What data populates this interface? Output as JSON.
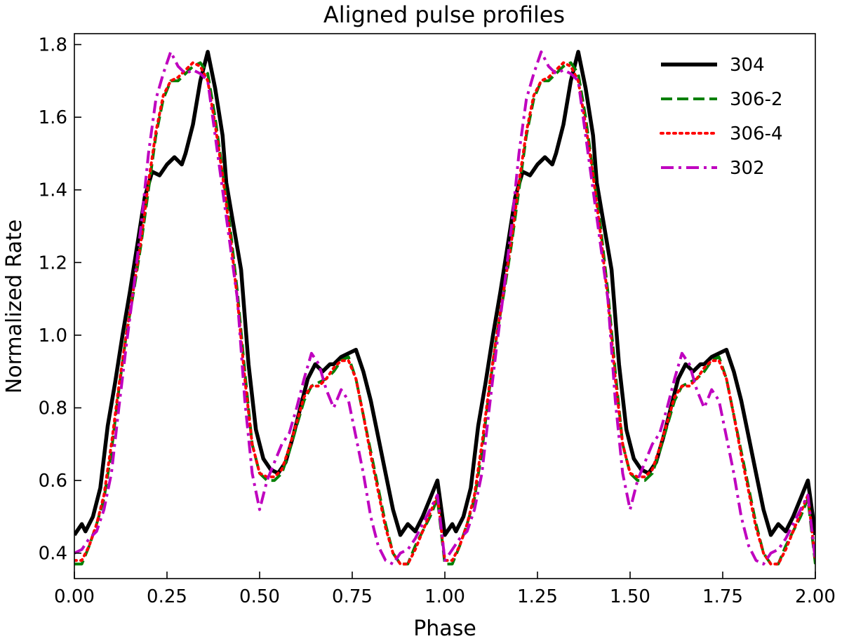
{
  "chart_data": {
    "type": "line",
    "title": "Aligned pulse profiles",
    "xlabel": "Phase",
    "ylabel": "Normalized Rate",
    "xlim": [
      0.0,
      2.0
    ],
    "ylim": [
      0.33,
      1.83
    ],
    "xticks": [
      0.0,
      0.25,
      0.5,
      0.75,
      1.0,
      1.25,
      1.5,
      1.75,
      2.0
    ],
    "xtick_labels": [
      "0.00",
      "0.25",
      "0.50",
      "0.75",
      "1.00",
      "1.25",
      "1.50",
      "1.75",
      "2.00"
    ],
    "yticks": [
      0.4,
      0.6,
      0.8,
      1.0,
      1.2,
      1.4,
      1.6,
      1.8
    ],
    "ytick_labels": [
      "0.4",
      "0.6",
      "0.8",
      "1.0",
      "1.2",
      "1.4",
      "1.6",
      "1.8"
    ],
    "grid": false,
    "legend_position": "top-right",
    "series": [
      {
        "name": "304",
        "color": "#000000",
        "style": "solid",
        "x": [
          0.0,
          0.02,
          0.03,
          0.05,
          0.07,
          0.09,
          0.11,
          0.13,
          0.15,
          0.17,
          0.19,
          0.21,
          0.23,
          0.25,
          0.27,
          0.29,
          0.3,
          0.32,
          0.34,
          0.36,
          0.38,
          0.4,
          0.41,
          0.43,
          0.45,
          0.47,
          0.49,
          0.51,
          0.53,
          0.55,
          0.57,
          0.59,
          0.61,
          0.63,
          0.65,
          0.67,
          0.69,
          0.7,
          0.72,
          0.74,
          0.76,
          0.78,
          0.8,
          0.82,
          0.84,
          0.86,
          0.88,
          0.9,
          0.92,
          0.94,
          0.96,
          0.98,
          1.0
        ],
        "y": [
          0.45,
          0.48,
          0.46,
          0.5,
          0.58,
          0.75,
          0.87,
          1.0,
          1.12,
          1.25,
          1.38,
          1.45,
          1.44,
          1.47,
          1.49,
          1.47,
          1.5,
          1.58,
          1.7,
          1.78,
          1.68,
          1.55,
          1.42,
          1.3,
          1.18,
          0.92,
          0.74,
          0.66,
          0.63,
          0.62,
          0.65,
          0.72,
          0.8,
          0.88,
          0.92,
          0.9,
          0.92,
          0.92,
          0.94,
          0.95,
          0.96,
          0.9,
          0.82,
          0.72,
          0.62,
          0.52,
          0.45,
          0.48,
          0.46,
          0.5,
          0.55,
          0.6,
          0.45
        ],
        "x_note": "",
        "y_note": ""
      },
      {
        "name": "306-2",
        "color": "#008000",
        "style": "dashed",
        "x": [
          0.0,
          0.02,
          0.04,
          0.06,
          0.08,
          0.1,
          0.12,
          0.14,
          0.16,
          0.18,
          0.2,
          0.22,
          0.24,
          0.26,
          0.28,
          0.3,
          0.32,
          0.34,
          0.36,
          0.38,
          0.4,
          0.42,
          0.44,
          0.46,
          0.48,
          0.5,
          0.52,
          0.54,
          0.56,
          0.58,
          0.6,
          0.62,
          0.64,
          0.66,
          0.68,
          0.7,
          0.72,
          0.74,
          0.76,
          0.78,
          0.8,
          0.82,
          0.84,
          0.86,
          0.88,
          0.9,
          0.92,
          0.94,
          0.96,
          0.98,
          1.0
        ],
        "y": [
          0.37,
          0.37,
          0.42,
          0.48,
          0.55,
          0.68,
          0.85,
          1.0,
          1.12,
          1.25,
          1.4,
          1.55,
          1.65,
          1.7,
          1.7,
          1.72,
          1.74,
          1.75,
          1.72,
          1.6,
          1.45,
          1.3,
          1.12,
          0.9,
          0.7,
          0.62,
          0.6,
          0.6,
          0.62,
          0.68,
          0.75,
          0.82,
          0.86,
          0.87,
          0.88,
          0.9,
          0.93,
          0.94,
          0.88,
          0.78,
          0.68,
          0.58,
          0.48,
          0.4,
          0.37,
          0.37,
          0.42,
          0.46,
          0.5,
          0.55,
          0.37
        ]
      },
      {
        "name": "306-4",
        "color": "#ff0000",
        "style": "dotted",
        "x": [
          0.0,
          0.02,
          0.04,
          0.06,
          0.08,
          0.1,
          0.12,
          0.14,
          0.16,
          0.18,
          0.2,
          0.22,
          0.24,
          0.26,
          0.28,
          0.3,
          0.32,
          0.34,
          0.36,
          0.38,
          0.4,
          0.42,
          0.44,
          0.46,
          0.48,
          0.5,
          0.52,
          0.54,
          0.56,
          0.58,
          0.6,
          0.62,
          0.64,
          0.66,
          0.68,
          0.7,
          0.72,
          0.74,
          0.76,
          0.78,
          0.8,
          0.82,
          0.84,
          0.86,
          0.88,
          0.9,
          0.92,
          0.94,
          0.96,
          0.98,
          1.0
        ],
        "y": [
          0.38,
          0.38,
          0.42,
          0.48,
          0.56,
          0.7,
          0.86,
          1.0,
          1.13,
          1.26,
          1.42,
          1.56,
          1.66,
          1.7,
          1.71,
          1.73,
          1.75,
          1.74,
          1.7,
          1.58,
          1.44,
          1.28,
          1.1,
          0.88,
          0.7,
          0.62,
          0.61,
          0.61,
          0.63,
          0.69,
          0.76,
          0.83,
          0.86,
          0.86,
          0.88,
          0.91,
          0.93,
          0.93,
          0.88,
          0.78,
          0.67,
          0.57,
          0.47,
          0.4,
          0.37,
          0.37,
          0.41,
          0.46,
          0.51,
          0.56,
          0.38
        ]
      },
      {
        "name": "302",
        "color": "#bf00bf",
        "style": "dashdot",
        "x": [
          0.0,
          0.02,
          0.04,
          0.06,
          0.08,
          0.1,
          0.12,
          0.14,
          0.16,
          0.18,
          0.2,
          0.22,
          0.24,
          0.26,
          0.28,
          0.3,
          0.32,
          0.34,
          0.36,
          0.38,
          0.4,
          0.42,
          0.44,
          0.46,
          0.48,
          0.5,
          0.52,
          0.54,
          0.56,
          0.58,
          0.6,
          0.62,
          0.64,
          0.66,
          0.68,
          0.7,
          0.72,
          0.74,
          0.76,
          0.78,
          0.8,
          0.82,
          0.84,
          0.86,
          0.88,
          0.9,
          0.92,
          0.94,
          0.96,
          0.98,
          1.0
        ],
        "y": [
          0.4,
          0.41,
          0.44,
          0.46,
          0.52,
          0.62,
          0.8,
          0.97,
          1.13,
          1.3,
          1.5,
          1.65,
          1.72,
          1.78,
          1.74,
          1.72,
          1.73,
          1.72,
          1.7,
          1.55,
          1.4,
          1.25,
          1.1,
          0.82,
          0.62,
          0.52,
          0.6,
          0.65,
          0.7,
          0.73,
          0.8,
          0.88,
          0.95,
          0.92,
          0.85,
          0.8,
          0.85,
          0.82,
          0.72,
          0.62,
          0.5,
          0.42,
          0.38,
          0.37,
          0.4,
          0.41,
          0.44,
          0.48,
          0.52,
          0.56,
          0.38
        ]
      }
    ]
  }
}
